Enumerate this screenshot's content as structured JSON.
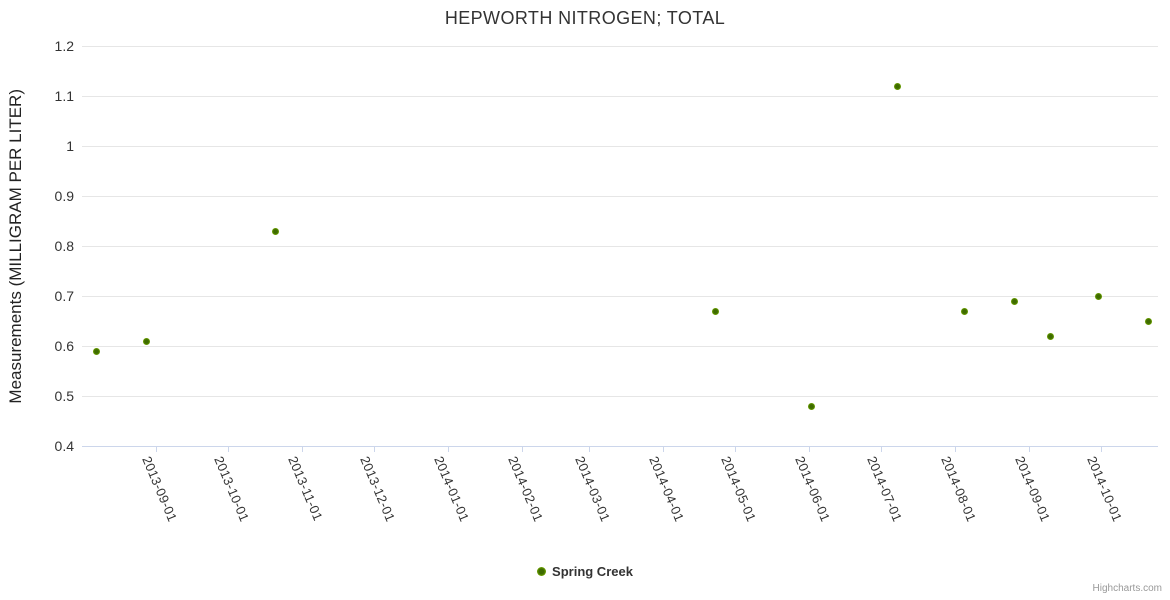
{
  "chart_data": {
    "type": "scatter",
    "title": "HEPWORTH NITROGEN; TOTAL",
    "ylabel": "Measurements (MILLIGRAM PER LITER)",
    "xlim": [
      "2013-08-01",
      "2014-10-25"
    ],
    "ylim": [
      0.4,
      1.2
    ],
    "x_ticks": [
      "2013-09-01",
      "2013-10-01",
      "2013-11-01",
      "2013-12-01",
      "2014-01-01",
      "2014-02-01",
      "2014-03-01",
      "2014-04-01",
      "2014-05-01",
      "2014-06-01",
      "2014-07-01",
      "2014-08-01",
      "2014-09-01",
      "2014-10-01"
    ],
    "y_ticks": [
      "0.4",
      "0.5",
      "0.6",
      "0.7",
      "0.8",
      "0.9",
      "1",
      "1.1",
      "1.2"
    ],
    "grid": "horizontal",
    "legend_position": "bottom-center",
    "series": [
      {
        "name": "Spring Creek",
        "color": "#7CB400",
        "marker_inner_color": "#3E6B00",
        "points": [
          {
            "x": "2013-08-07",
            "y": 0.59
          },
          {
            "x": "2013-08-28",
            "y": 0.61
          },
          {
            "x": "2013-10-21",
            "y": 0.83
          },
          {
            "x": "2014-04-23",
            "y": 0.67
          },
          {
            "x": "2014-06-02",
            "y": 0.48
          },
          {
            "x": "2014-07-08",
            "y": 1.12
          },
          {
            "x": "2014-08-05",
            "y": 0.67
          },
          {
            "x": "2014-08-26",
            "y": 0.69
          },
          {
            "x": "2014-09-10",
            "y": 0.62
          },
          {
            "x": "2014-09-30",
            "y": 0.7
          },
          {
            "x": "2014-10-21",
            "y": 0.65
          }
        ]
      }
    ],
    "credit": "Highcharts.com",
    "colors": {
      "grid": "#e6e6e6",
      "axis": "#ccd6eb",
      "text": "#333333",
      "credit": "#999999"
    }
  }
}
